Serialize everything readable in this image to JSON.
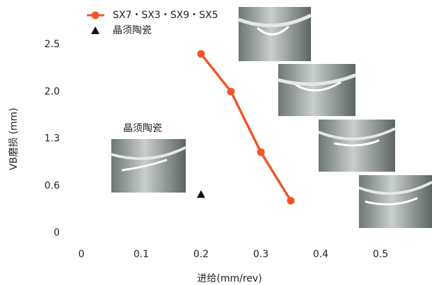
{
  "chart_data": {
    "type": "line",
    "xlabel": "进给(mm/rev)",
    "ylabel": "VB磨损 (mm)",
    "xlim": [
      0,
      0.5
    ],
    "xticks": [
      0,
      0.1,
      0.2,
      0.3,
      0.4,
      0.5
    ],
    "ylim": [
      0,
      2.5
    ],
    "yticks": [
      0,
      0.6,
      1.3,
      {
        "value": 2,
        "label": "2.0"
      },
      2.5
    ],
    "annotation": "晶须陶瓷",
    "series": [
      {
        "name": "SX7・SX3・SX9・SX5",
        "color": "#f0552a",
        "marker": "circle",
        "x": [
          0.2,
          0.25,
          0.3,
          0.35
        ],
        "values": [
          2.4,
          2.0,
          1.1,
          0.41
        ]
      },
      {
        "name": "晶须陶瓷",
        "color": "#111111",
        "marker": "triangle",
        "x": [
          0.2
        ],
        "values": [
          0.49
        ]
      }
    ]
  }
}
